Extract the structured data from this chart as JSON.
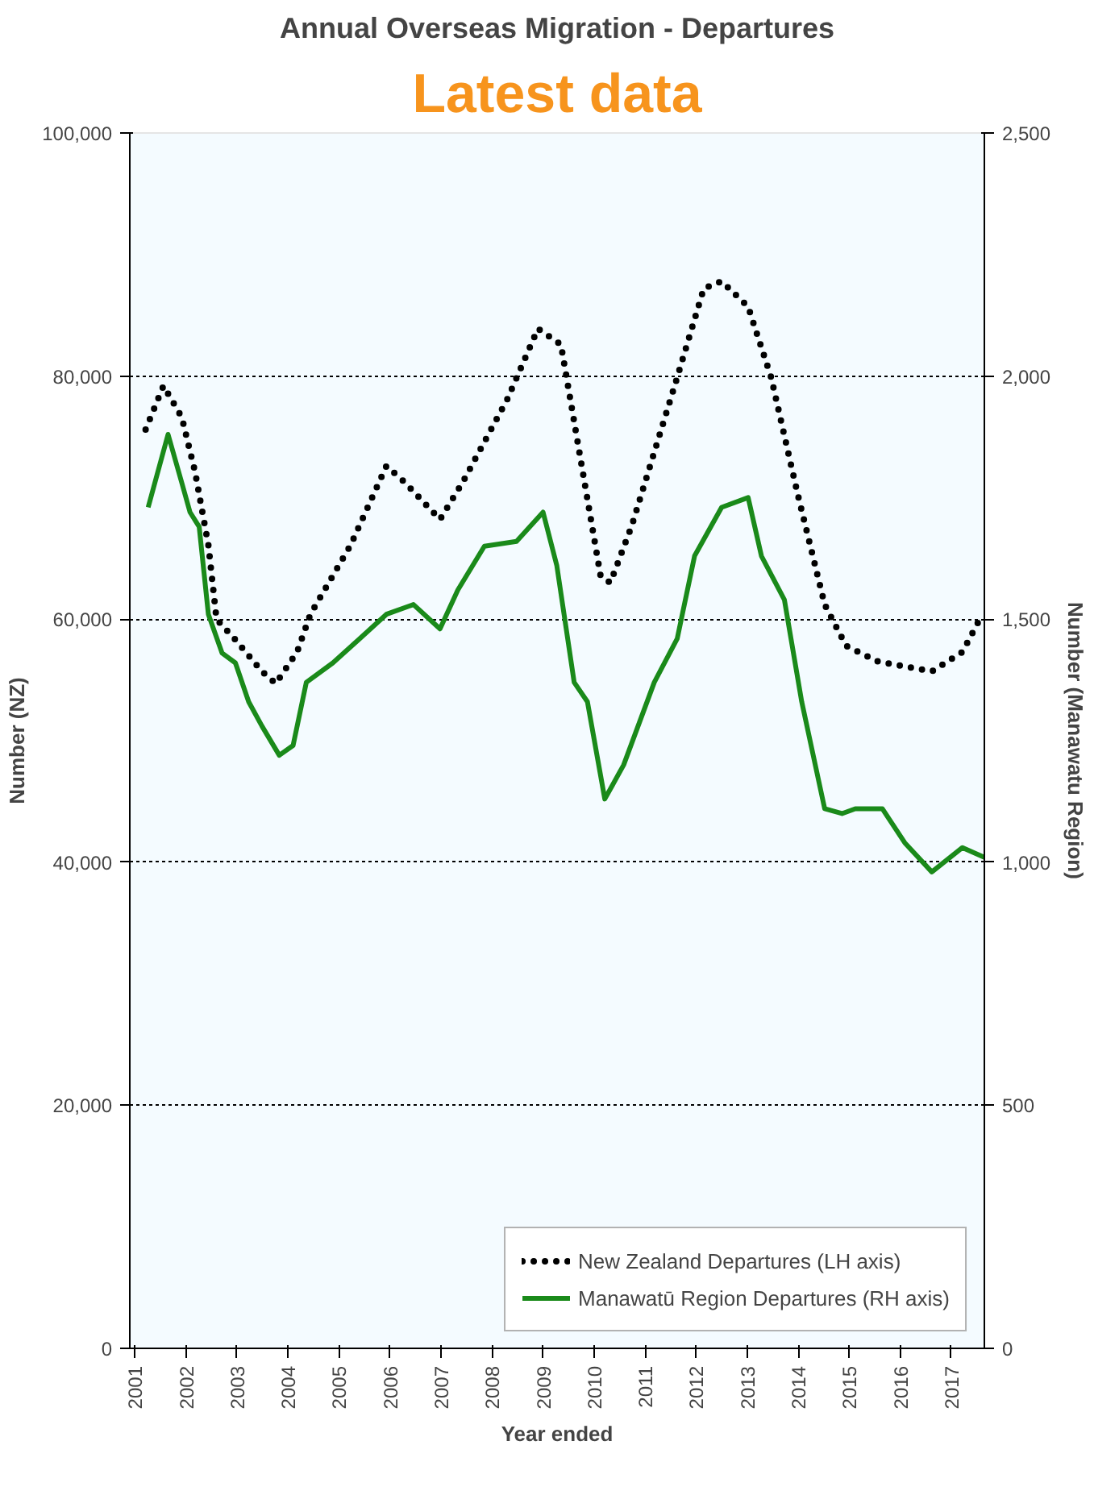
{
  "chart_data": {
    "type": "line",
    "title": "Annual Overseas Migration - Departures",
    "annotations": [
      "Latest data"
    ],
    "xlabel": "Year ended",
    "ylabel": "Number (NZ)",
    "y2label": "Number (Manawatu Region)",
    "xlim": [
      2000.9,
      2017.65
    ],
    "xticks": [
      2001,
      2002,
      2003,
      2004,
      2005,
      2006,
      2007,
      2008,
      2009,
      2010,
      2011,
      2012,
      2013,
      2014,
      2015,
      2016,
      2017
    ],
    "ylim": [
      0,
      100000
    ],
    "yticks": [
      0,
      {
        "value": 20000,
        "label": "20,000"
      },
      {
        "value": 40000,
        "label": "40,000"
      },
      {
        "value": 60000,
        "label": "60,000"
      },
      {
        "value": 80000,
        "label": "80,000"
      },
      {
        "value": 100000,
        "label": "100,000"
      }
    ],
    "y2lim": [
      0,
      2500
    ],
    "y2ticks": [
      0,
      500,
      {
        "value": 1000,
        "label": "1,000"
      },
      {
        "value": 1500,
        "label": "1,500"
      },
      {
        "value": 2000,
        "label": "2,000"
      },
      {
        "value": 2500,
        "label": "2,500"
      }
    ],
    "grid": "y",
    "legend": "bottom right",
    "series": [
      {
        "name": "New Zealand Departures (LH axis)",
        "color": "#000000",
        "line_style": "dotted",
        "x": [
          2001.21,
          2001.56,
          2001.92,
          2002.18,
          2002.44,
          2002.6,
          2002.97,
          2003.49,
          2003.76,
          2004.18,
          2004.44,
          2005.23,
          2005.93,
          2006.28,
          2006.98,
          2007.43,
          2008.3,
          2008.9,
          2009.35,
          2010.13,
          2010.32,
          2010.74,
          2011.63,
          2012.15,
          2012.5,
          2013.02,
          2013.47,
          2013.99,
          2014.52,
          2014.94,
          2015.57,
          2016.62,
          2017.22,
          2017.61
        ],
        "values": [
          75600,
          79200,
          76600,
          72100,
          66100,
          60000,
          58300,
          55700,
          54700,
          57300,
          60400,
          66100,
          72600,
          71300,
          68200,
          71300,
          78100,
          83900,
          82600,
          63500,
          63000,
          67700,
          79900,
          87200,
          87800,
          85700,
          79900,
          70300,
          61200,
          57800,
          56500,
          55700,
          57300,
          60400
        ]
      },
      {
        "name": "Manawatū Region Departures (RH axis)",
        "color": "#1a8a1a",
        "line_style": "solid",
        "axis": "y2",
        "x": [
          2001.26,
          2001.65,
          2001.92,
          2002.08,
          2002.26,
          2002.44,
          2002.71,
          2002.97,
          2003.23,
          2003.49,
          2003.83,
          2004.1,
          2004.36,
          2004.88,
          2005.41,
          2005.93,
          2006.46,
          2006.98,
          2007.33,
          2007.85,
          2008.48,
          2009.0,
          2009.27,
          2009.61,
          2009.87,
          2010.21,
          2010.58,
          2011.18,
          2011.63,
          2011.97,
          2012.5,
          2013.02,
          2013.28,
          2013.73,
          2014.07,
          2014.52,
          2014.86,
          2015.12,
          2015.65,
          2016.09,
          2016.62,
          2017.22,
          2017.65
        ],
        "values": [
          1730,
          1880,
          1780,
          1720,
          1690,
          1510,
          1430,
          1410,
          1330,
          1280,
          1220,
          1240,
          1370,
          1410,
          1460,
          1510,
          1530,
          1480,
          1560,
          1650,
          1660,
          1720,
          1610,
          1370,
          1330,
          1130,
          1200,
          1370,
          1460,
          1630,
          1730,
          1750,
          1630,
          1540,
          1330,
          1110,
          1100,
          1110,
          1110,
          1040,
          980,
          1030,
          1010
        ]
      }
    ]
  }
}
